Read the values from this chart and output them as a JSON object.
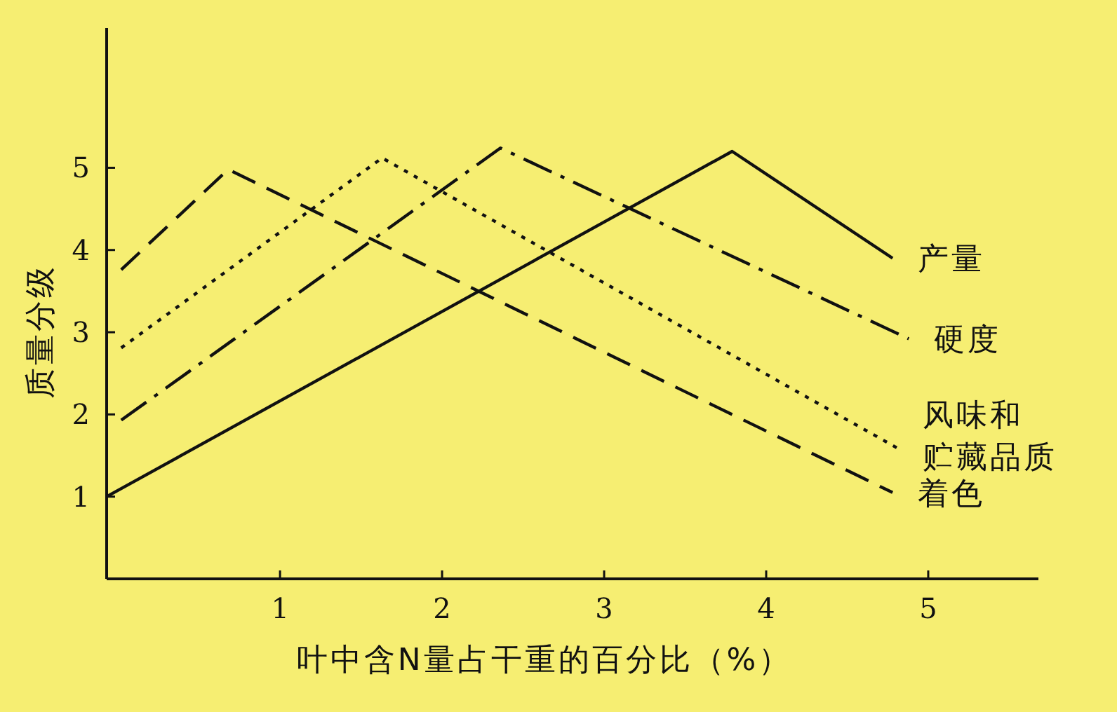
{
  "chart_data": {
    "type": "line",
    "xlabel": "叶中含N量占干重的百分比（%）",
    "ylabel": "质量分级",
    "xlim": [
      -0.07,
      5.68
    ],
    "ylim": [
      0,
      6.7
    ],
    "xticks": [
      1,
      2,
      3,
      4,
      5
    ],
    "yticks": [
      1,
      2,
      3,
      4,
      5
    ],
    "grid": false,
    "legend": false,
    "marker": "none",
    "series": [
      {
        "name": "产量",
        "color": "#111111",
        "line_style": "solid",
        "x": [
          -0.07,
          3.79,
          4.78
        ],
        "values": [
          1.0,
          5.2,
          3.9
        ]
      },
      {
        "name": "硬度",
        "color": "#111111",
        "line_style": "dashdot",
        "x": [
          0.02,
          2.36,
          4.88
        ],
        "values": [
          1.93,
          5.24,
          2.92
        ]
      },
      {
        "name": "风味和贮藏品质",
        "color": "#111111",
        "line_style": "dotted",
        "x": [
          0.02,
          1.63,
          4.81
        ],
        "values": [
          2.81,
          5.12,
          1.59
        ]
      },
      {
        "name": "着色",
        "color": "#111111",
        "line_style": "dashed",
        "x": [
          0.02,
          0.68,
          4.78
        ],
        "values": [
          3.76,
          4.98,
          1.05
        ]
      }
    ]
  }
}
